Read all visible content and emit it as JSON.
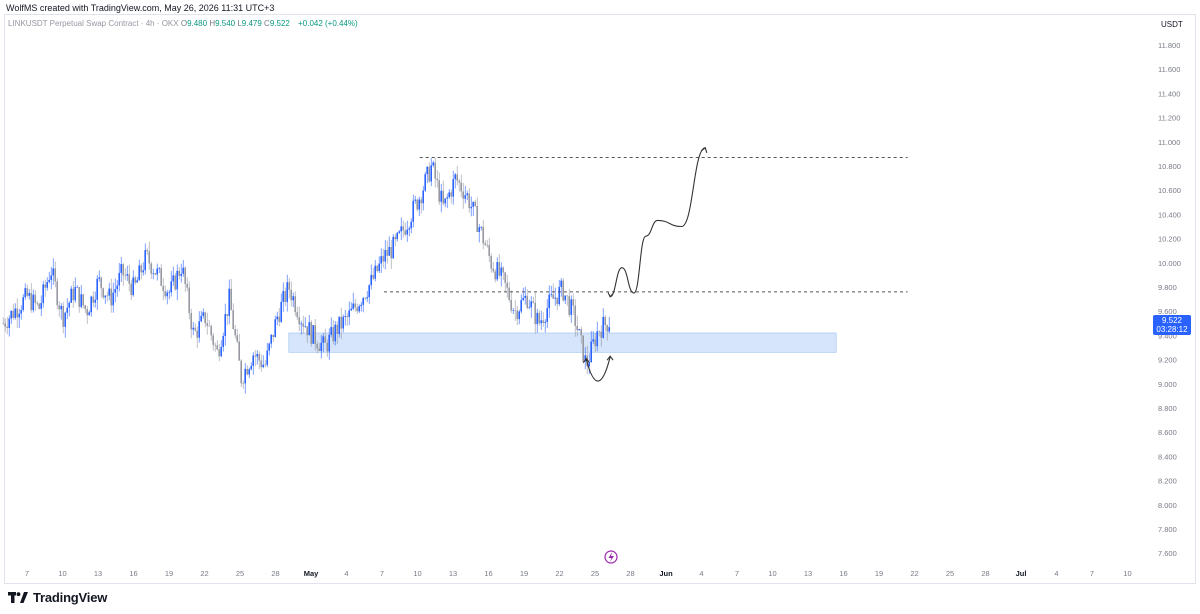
{
  "header": {
    "credit": "WolfMS created with TradingView.com, May 26, 2026 11:31 UTC+3",
    "symbol": "LINKUSDT Perpetual Swap Contract · 4h · OKX",
    "ohlc": [
      {
        "key": "O",
        "value": "9.480"
      },
      {
        "key": "H",
        "value": "9.540"
      },
      {
        "key": "L",
        "value": "9.479"
      },
      {
        "key": "C",
        "value": "9.522"
      }
    ],
    "change": "+0.042 (+0.44%)"
  },
  "price_axis": {
    "currency": "USDT"
  },
  "last_price": {
    "price": "9.522",
    "countdown": "03:28:12"
  },
  "footer": {
    "brand": "TradingView"
  },
  "colors": {
    "up": "#2962ff",
    "down": "#9598a1",
    "zone": "#d6e5fb",
    "zone_border": "#9cc0f3",
    "level_line": "#555555",
    "drawing": "#333333",
    "accent": "#9c27b0"
  },
  "chart_data": {
    "type": "candlestick",
    "y_axis": {
      "min": 7.6,
      "max": 11.8,
      "step": 0.2,
      "tick_labels": [
        "11.800",
        "11.600",
        "11.400",
        "11.200",
        "11.000",
        "10.800",
        "10.600",
        "10.400",
        "10.200",
        "10.000",
        "9.800",
        "9.600",
        "9.400",
        "9.200",
        "9.000",
        "8.800",
        "8.600",
        "8.400",
        "8.200",
        "8.000",
        "7.800",
        "7.600"
      ]
    },
    "x_axis": {
      "tick_labels": [
        "7",
        "10",
        "13",
        "16",
        "19",
        "22",
        "25",
        "28",
        "May",
        "4",
        "7",
        "10",
        "13",
        "16",
        "19",
        "22",
        "25",
        "28",
        "Jun",
        "4",
        "7",
        "10",
        "13",
        "16",
        "19",
        "22",
        "25",
        "28",
        "Jul",
        "4",
        "7",
        "10"
      ]
    },
    "levels": [
      {
        "price": 10.87,
        "from_date": "May 10",
        "to_date": "Jun 20",
        "style": "dashed"
      },
      {
        "price": 9.76,
        "from_date": "May 7",
        "to_date": "Jun 20",
        "style": "dashed"
      }
    ],
    "support_zone": {
      "from_price": 9.26,
      "to_price": 9.42,
      "from_date": "Apr 29",
      "to_date": "Jun 14"
    },
    "path": [
      [
        "Apr 5",
        9.5
      ],
      [
        "Apr 7",
        9.72
      ],
      [
        "Apr 8",
        9.62
      ],
      [
        "Apr 9",
        9.95
      ],
      [
        "Apr 10",
        9.55
      ],
      [
        "Apr 11",
        9.78
      ],
      [
        "Apr 12",
        9.6
      ],
      [
        "Apr 13",
        9.85
      ],
      [
        "Apr 14",
        9.7
      ],
      [
        "Apr 15",
        9.92
      ],
      [
        "Apr 16",
        9.78
      ],
      [
        "Apr 17",
        10.05
      ],
      [
        "Apr 18",
        9.9
      ],
      [
        "Apr 19",
        9.75
      ],
      [
        "Apr 20",
        9.98
      ],
      [
        "Apr 21",
        9.4
      ],
      [
        "Apr 22",
        9.55
      ],
      [
        "Apr 23",
        9.25
      ],
      [
        "Apr 24",
        9.7
      ],
      [
        "Apr 25",
        9.05
      ],
      [
        "Apr 26",
        9.25
      ],
      [
        "Apr 27",
        9.15
      ],
      [
        "Apr 28",
        9.55
      ],
      [
        "Apr 29",
        9.8
      ],
      [
        "Apr 30",
        9.55
      ],
      [
        "May 1",
        9.4
      ],
      [
        "May 2",
        9.3
      ],
      [
        "May 3",
        9.45
      ],
      [
        "May 4",
        9.55
      ],
      [
        "May 5",
        9.7
      ],
      [
        "May 6",
        9.85
      ],
      [
        "May 7",
        10.05
      ],
      [
        "May 8",
        10.15
      ],
      [
        "May 9",
        10.35
      ],
      [
        "May 10",
        10.55
      ],
      [
        "May 11",
        10.8
      ],
      [
        "May 12",
        10.45
      ],
      [
        "May 13",
        10.7
      ],
      [
        "May 14",
        10.55
      ],
      [
        "May 15",
        10.3
      ],
      [
        "May 16",
        10.0
      ],
      [
        "May 17",
        9.85
      ],
      [
        "May 18",
        9.6
      ],
      [
        "May 19",
        9.72
      ],
      [
        "May 20",
        9.5
      ],
      [
        "May 21",
        9.68
      ],
      [
        "May 22",
        9.78
      ],
      [
        "May 23",
        9.55
      ],
      [
        "May 24",
        9.15
      ],
      [
        "May 25",
        9.45
      ],
      [
        "May 26",
        9.52
      ]
    ],
    "projection": [
      [
        "May 26",
        9.72
      ],
      [
        "May 27",
        9.96
      ],
      [
        "May 28",
        9.75
      ],
      [
        "May 29",
        10.22
      ],
      [
        "May 30",
        10.35
      ],
      [
        "Jun 1",
        10.3
      ],
      [
        "Jun 3",
        10.95
      ]
    ],
    "rounded_bottom": [
      [
        "May 24",
        9.2
      ],
      [
        "May 25",
        9.05
      ],
      [
        "May 26",
        9.22
      ]
    ]
  }
}
